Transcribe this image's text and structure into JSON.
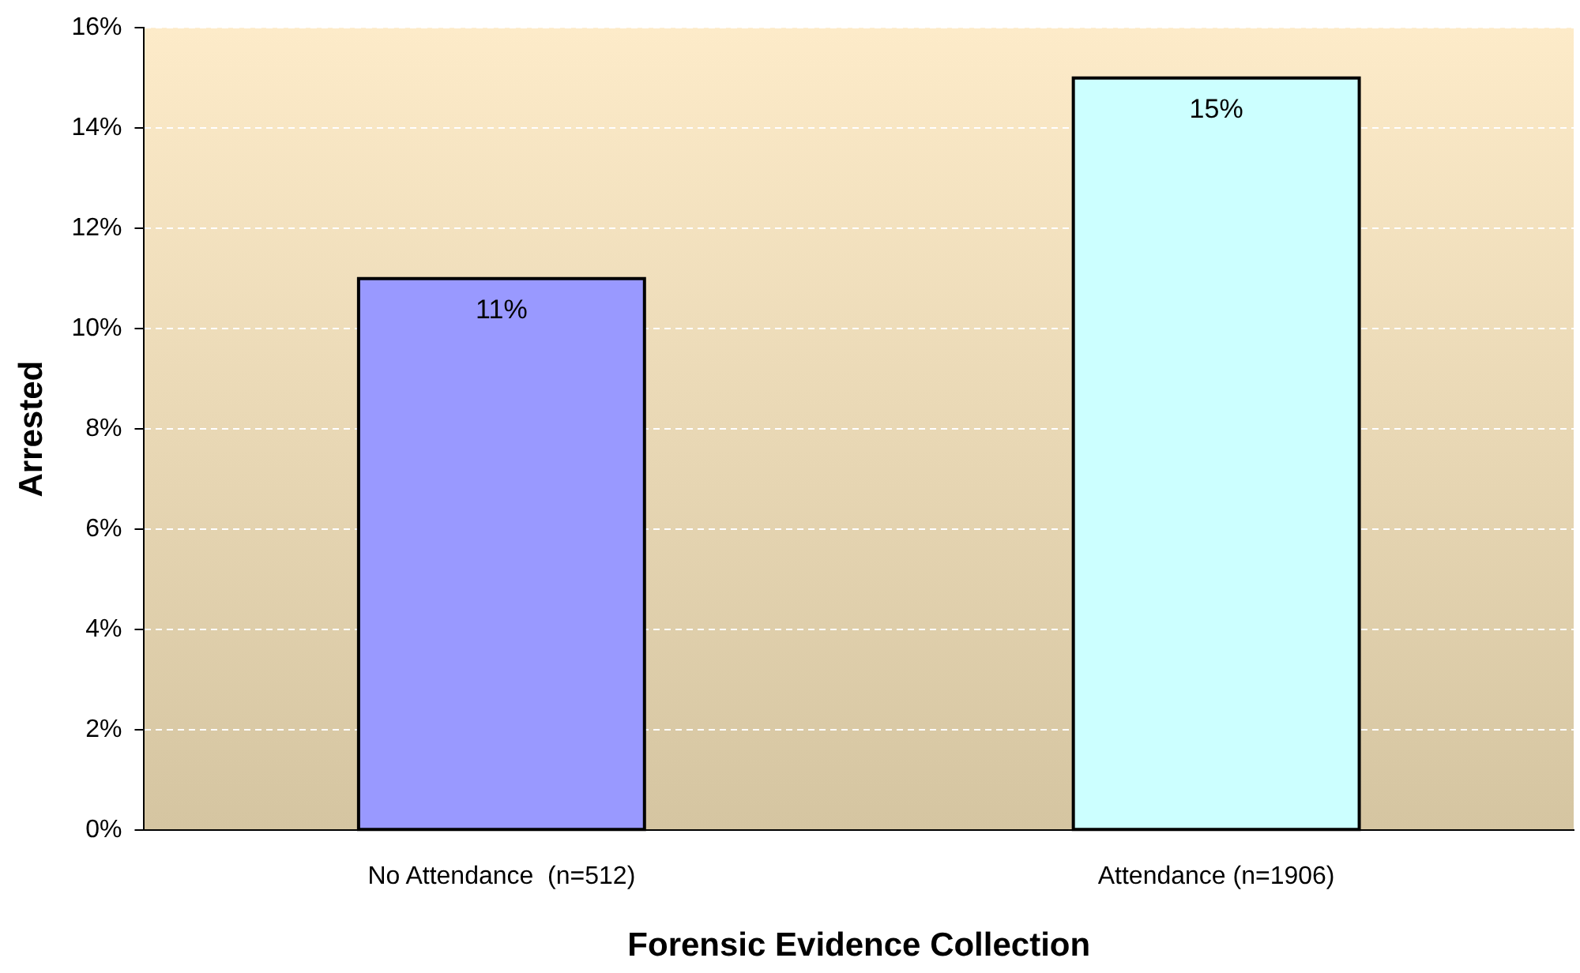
{
  "chart_data": {
    "type": "bar",
    "xlabel": "Forensic Evidence Collection",
    "ylabel": "Arrested",
    "categories": [
      "No Attendance  (n=512)",
      "Attendance (n=1906)"
    ],
    "values": [
      11,
      15
    ],
    "colors": [
      "#9999ff",
      "#ccffff"
    ],
    "value_labels": [
      "11%",
      "15%"
    ],
    "ylim": [
      0,
      16
    ],
    "yticks": [
      {
        "value": 0,
        "label": "0%"
      },
      {
        "value": 2,
        "label": "2%"
      },
      {
        "value": 4,
        "label": "4%"
      },
      {
        "value": 6,
        "label": "6%"
      },
      {
        "value": 8,
        "label": "8%"
      },
      {
        "value": 10,
        "label": "10%"
      },
      {
        "value": 12,
        "label": "12%"
      },
      {
        "value": 14,
        "label": "14%"
      },
      {
        "value": 16,
        "label": "16%"
      }
    ],
    "grid": "y",
    "legend": false
  }
}
